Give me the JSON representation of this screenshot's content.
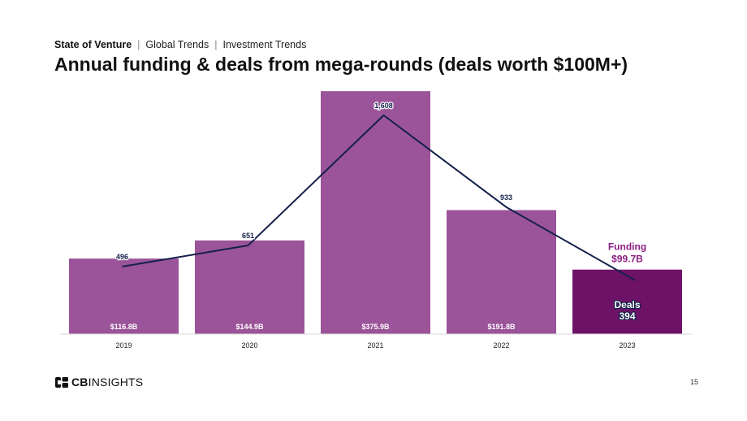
{
  "header": {
    "breadcrumb": [
      "State of Venture",
      "Global Trends",
      "Investment Trends"
    ],
    "separator": "|",
    "title": "Annual funding & deals from mega-rounds (deals worth $100M+)"
  },
  "chart_data": {
    "type": "bar",
    "categories": [
      "2019",
      "2020",
      "2021",
      "2022",
      "2023"
    ],
    "series": [
      {
        "name": "Funding",
        "kind": "bar",
        "values": [
          116.8,
          144.9,
          375.9,
          191.8,
          99.7
        ],
        "labels": [
          "$116.8B",
          "$144.9B",
          "$375.9B",
          "$191.8B",
          ""
        ],
        "color": "#9b5499",
        "highlight_color": "#6e1268"
      },
      {
        "name": "Deals",
        "kind": "line",
        "values": [
          496,
          651,
          1608,
          933,
          394
        ],
        "labels": [
          "496",
          "651",
          "1,608",
          "933",
          ""
        ],
        "color": "#14204a"
      }
    ],
    "annotations": {
      "funding": {
        "title": "Funding",
        "value": "$99.7B",
        "color": "#8b1e83"
      },
      "deals": {
        "title": "Deals",
        "value": "394"
      }
    },
    "ylim_funding": [
      0,
      400
    ],
    "ylim_deals": [
      0,
      1900
    ],
    "grid": false,
    "legend": "none"
  },
  "footer": {
    "logo_bold": "CB",
    "logo_rest": "INSIGHTS",
    "page": "15"
  }
}
